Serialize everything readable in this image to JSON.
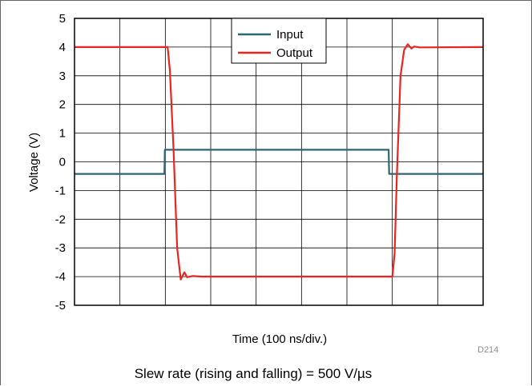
{
  "chart_data": {
    "type": "line",
    "xlabel": "Time (100 ns/div.)",
    "ylabel": "Voltage (V)",
    "xlim": [
      0,
      9
    ],
    "ylim": [
      -5,
      5
    ],
    "yticks": [
      "5",
      "4",
      "3",
      "2",
      "1",
      "0",
      "-1",
      "-2",
      "-3",
      "-4",
      "-5"
    ],
    "x_divisions": 9,
    "grid": true,
    "legend_position": "top-center",
    "series": [
      {
        "name": "Input",
        "color": "#2e6378",
        "x": [
          0,
          1.98,
          1.99,
          6.92,
          6.93,
          9
        ],
        "y": [
          -0.42,
          -0.42,
          0.42,
          0.42,
          -0.42,
          -0.42
        ]
      },
      {
        "name": "Output",
        "color": "#e8251f",
        "x": [
          0,
          2.05,
          2.1,
          2.18,
          2.26,
          2.34,
          2.42,
          2.48,
          2.6,
          2.8,
          7.0,
          7.05,
          7.1,
          7.18,
          7.26,
          7.34,
          7.42,
          7.48,
          7.6,
          9
        ],
        "y": [
          4.0,
          4.0,
          3.2,
          0.5,
          -3.0,
          -4.1,
          -3.85,
          -4.02,
          -3.98,
          -4.0,
          -4.0,
          -3.2,
          -0.5,
          3.0,
          3.9,
          4.1,
          3.95,
          4.02,
          3.99,
          4.0
        ]
      }
    ]
  },
  "figure_id": "D214",
  "caption": "Slew rate (rising and falling) = 500 V/µs"
}
